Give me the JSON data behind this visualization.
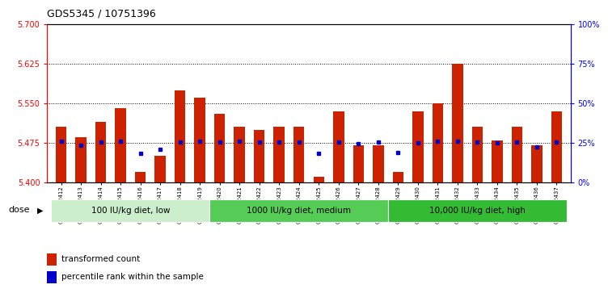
{
  "title": "GDS5345 / 10751396",
  "samples": [
    "GSM1502412",
    "GSM1502413",
    "GSM1502414",
    "GSM1502415",
    "GSM1502416",
    "GSM1502417",
    "GSM1502418",
    "GSM1502419",
    "GSM1502420",
    "GSM1502421",
    "GSM1502422",
    "GSM1502423",
    "GSM1502424",
    "GSM1502425",
    "GSM1502426",
    "GSM1502427",
    "GSM1502428",
    "GSM1502429",
    "GSM1502430",
    "GSM1502431",
    "GSM1502432",
    "GSM1502433",
    "GSM1502434",
    "GSM1502435",
    "GSM1502436",
    "GSM1502437"
  ],
  "bar_tops": [
    5.505,
    5.485,
    5.515,
    5.54,
    5.42,
    5.45,
    5.575,
    5.56,
    5.53,
    5.505,
    5.5,
    5.505,
    5.505,
    5.41,
    5.535,
    5.47,
    5.47,
    5.42,
    5.535,
    5.55,
    5.625,
    5.505,
    5.48,
    5.505,
    5.47,
    5.535
  ],
  "dot_y": [
    5.478,
    5.47,
    5.476,
    5.478,
    5.455,
    5.462,
    5.476,
    5.478,
    5.476,
    5.478,
    5.477,
    5.476,
    5.477,
    5.455,
    5.477,
    5.474,
    5.477,
    5.456,
    5.475,
    5.478,
    5.478,
    5.477,
    5.475,
    5.477,
    5.467,
    5.477
  ],
  "ylim_left": [
    5.4,
    5.7
  ],
  "yticks_left": [
    5.4,
    5.475,
    5.55,
    5.625,
    5.7
  ],
  "yticks_right_pct": [
    0,
    25,
    50,
    75,
    100
  ],
  "baseline": 5.4,
  "bar_color": "#CC2200",
  "dot_color": "#0000CC",
  "bg_color": "#FFFFFF",
  "plot_bg": "#FFFFFF",
  "groups": [
    {
      "label": "100 IU/kg diet, low",
      "start": 0,
      "end": 8,
      "color": "#CCEECC"
    },
    {
      "label": "1000 IU/kg diet, medium",
      "start": 8,
      "end": 17,
      "color": "#55CC55"
    },
    {
      "label": "10,000 IU/kg diet, high",
      "start": 17,
      "end": 26,
      "color": "#33BB33"
    }
  ],
  "legend_items": [
    {
      "label": "transformed count",
      "color": "#CC2200"
    },
    {
      "label": "percentile rank within the sample",
      "color": "#0000CC"
    }
  ],
  "dose_label": "dose"
}
